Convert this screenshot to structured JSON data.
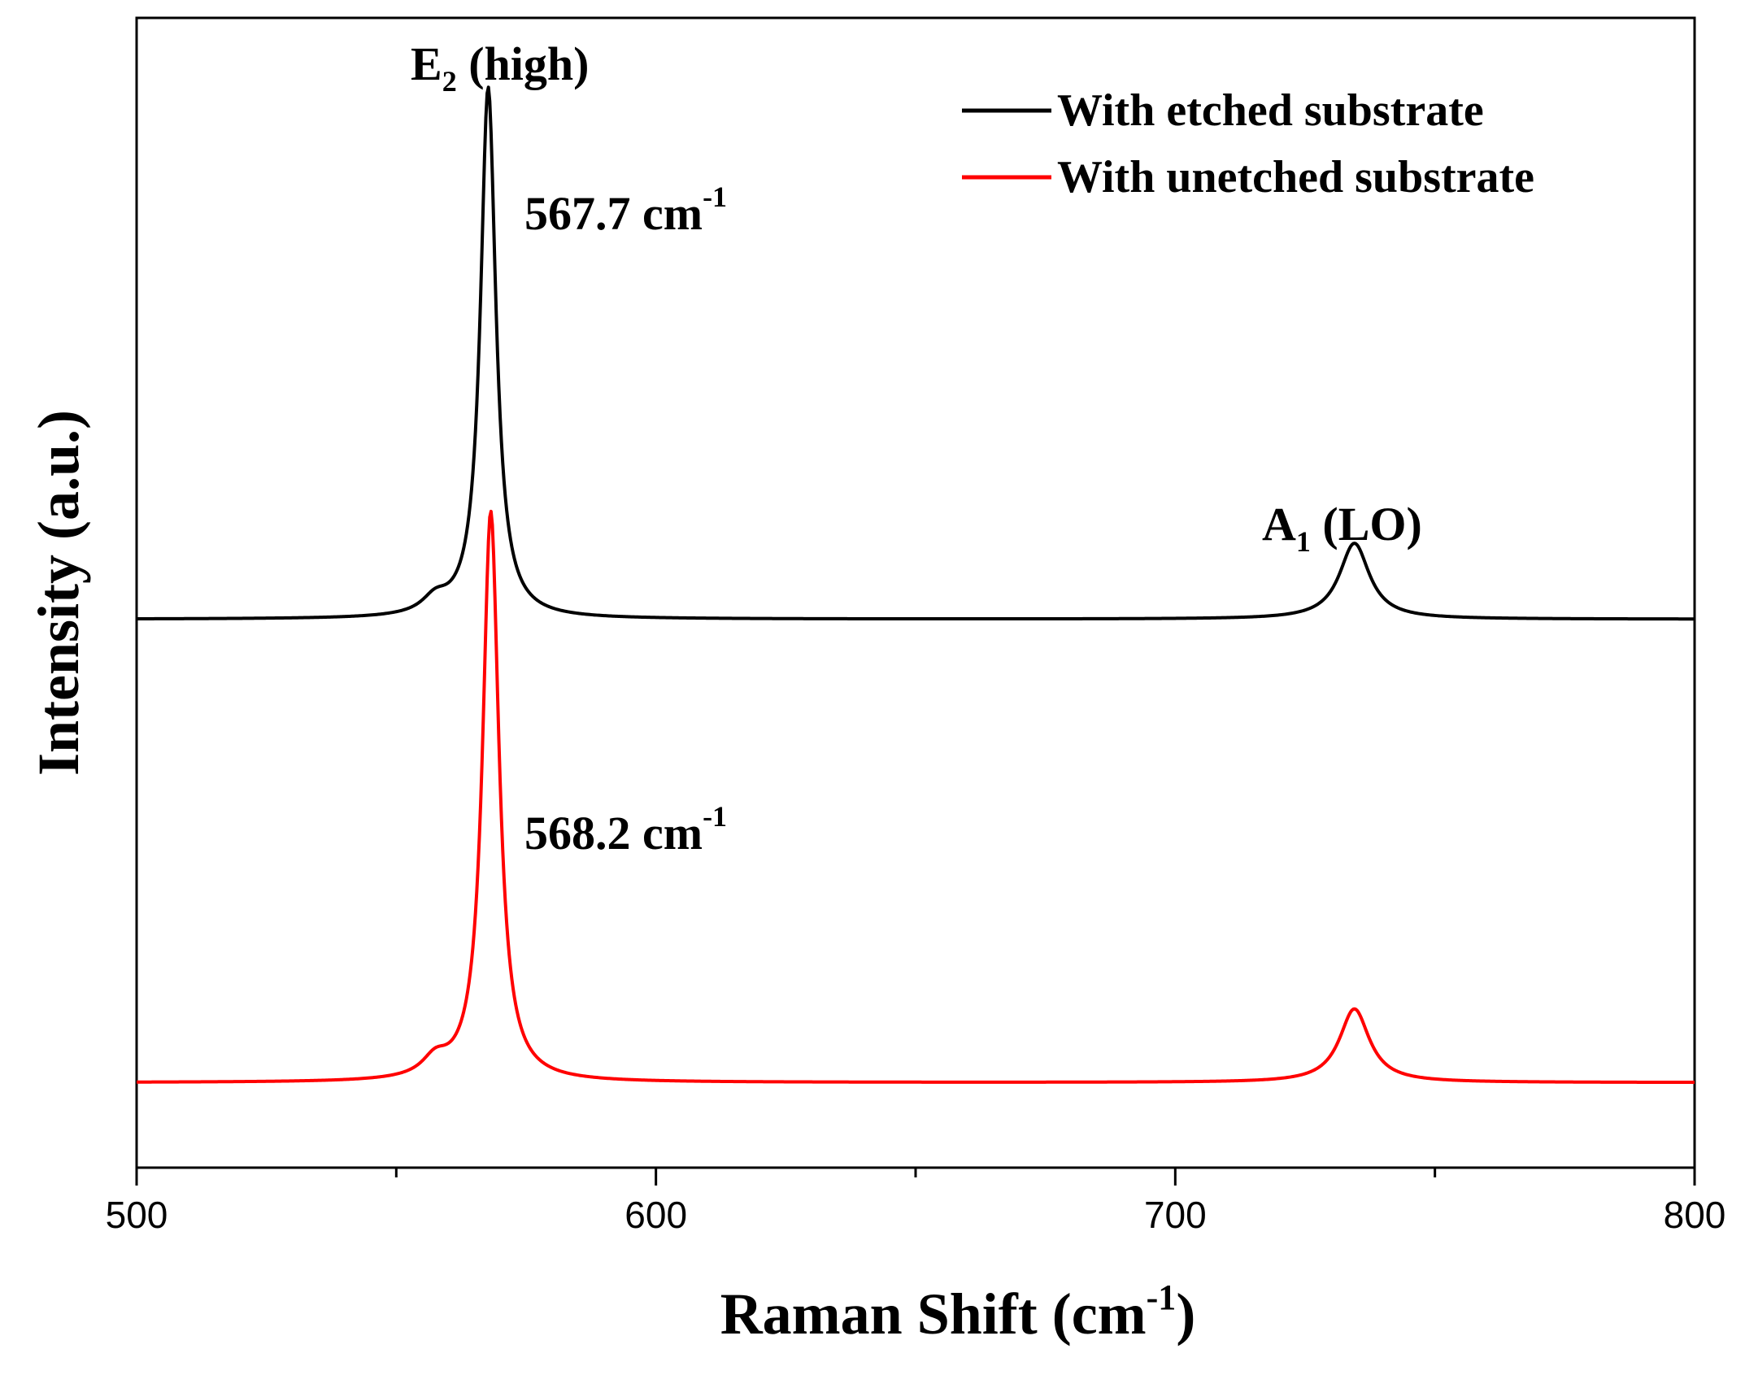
{
  "chart_data": {
    "type": "line",
    "title": "",
    "xlabel": "Raman Shift (cm",
    "xlabel_sup": "-1",
    "xlabel_tail": ")",
    "ylabel": "Intensity (a.u.)",
    "xlim": [
      500,
      800
    ],
    "ylim": [
      0,
      1
    ],
    "x_major_ticks": [
      500,
      600,
      700,
      800
    ],
    "x_minor_ticks": [
      550,
      650,
      750
    ],
    "x_tick_labels": [
      "500",
      "600",
      "700",
      "800"
    ],
    "y_ticks_shown": false,
    "grid": false,
    "legend_position": "top-right",
    "series": [
      {
        "name": "With etched substrate",
        "color": "#000000",
        "baseline": 0.477,
        "peaks": [
          {
            "center": 567.7,
            "height": 0.462,
            "width": 1.8
          },
          {
            "center": 557.5,
            "height": 0.013,
            "width": 3.0
          },
          {
            "center": 734.5,
            "height": 0.066,
            "width": 3.5
          }
        ],
        "points": [
          [
            500,
            0.477
          ],
          [
            540,
            0.478
          ],
          [
            550,
            0.481
          ],
          [
            557,
            0.49
          ],
          [
            562,
            0.5
          ],
          [
            565,
            0.56
          ],
          [
            566.5,
            0.7
          ],
          [
            567.7,
            0.939
          ],
          [
            568.8,
            0.72
          ],
          [
            570,
            0.54
          ],
          [
            575,
            0.485
          ],
          [
            600,
            0.478
          ],
          [
            700,
            0.478
          ],
          [
            725,
            0.482
          ],
          [
            731,
            0.51
          ],
          [
            734.5,
            0.543
          ],
          [
            738,
            0.51
          ],
          [
            745,
            0.483
          ],
          [
            760,
            0.478
          ],
          [
            800,
            0.478
          ]
        ]
      },
      {
        "name": "With unetched substrate",
        "color": "#ff0000",
        "baseline": 0.074,
        "peaks": [
          {
            "center": 568.2,
            "height": 0.496,
            "width": 1.9
          },
          {
            "center": 557.5,
            "height": 0.015,
            "width": 3.0
          },
          {
            "center": 734.5,
            "height": 0.064,
            "width": 3.5
          }
        ],
        "points": [
          [
            500,
            0.074
          ],
          [
            540,
            0.075
          ],
          [
            550,
            0.078
          ],
          [
            557,
            0.09
          ],
          [
            562,
            0.1
          ],
          [
            565,
            0.17
          ],
          [
            567,
            0.4
          ],
          [
            568.2,
            0.57
          ],
          [
            569.5,
            0.3
          ],
          [
            571,
            0.12
          ],
          [
            575,
            0.082
          ],
          [
            600,
            0.075
          ],
          [
            700,
            0.075
          ],
          [
            725,
            0.08
          ],
          [
            731,
            0.11
          ],
          [
            734.5,
            0.138
          ],
          [
            738,
            0.11
          ],
          [
            745,
            0.08
          ],
          [
            760,
            0.075
          ],
          [
            800,
            0.074
          ]
        ]
      }
    ],
    "annotations": [
      {
        "id": "e2",
        "text": "E",
        "sub": "2",
        "tail": " (high)",
        "x": 567.7,
        "y": 0.95
      },
      {
        "id": "a1",
        "text": "A",
        "sub": "1",
        "tail": " (LO)",
        "x": 734.5,
        "y": 0.585
      },
      {
        "id": "peak-etched",
        "text": "567.7 cm",
        "sup": "-1",
        "x": 575.0,
        "y": 0.855
      },
      {
        "id": "peak-unetched",
        "text": "568.2 cm",
        "sup": "-1",
        "x": 575.0,
        "y": 0.315
      }
    ]
  }
}
